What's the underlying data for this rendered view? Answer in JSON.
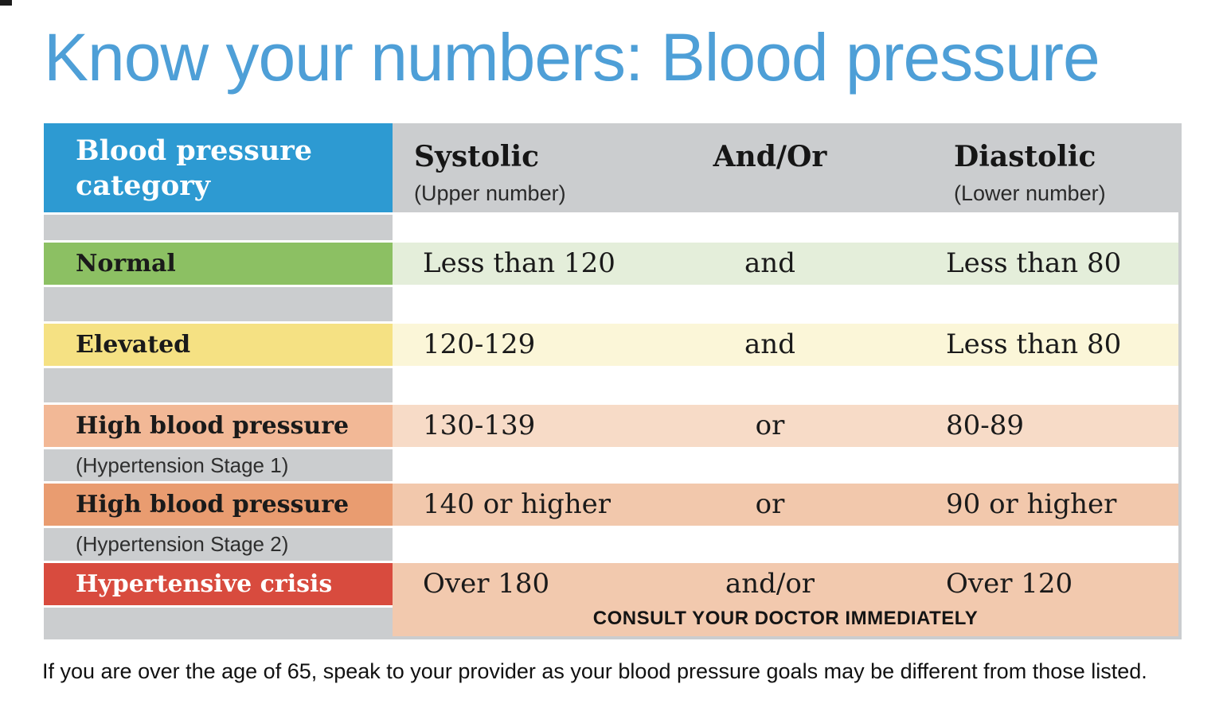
{
  "page": {
    "title": "Know your numbers: Blood pressure",
    "footnote": "If you are over the age of 65, speak to your provider as your blood pressure goals may be different from those listed.",
    "colors": {
      "title_blue": "#4E9FD7",
      "header_blue": "#2D9AD2",
      "table_gray": "#CBCDCF",
      "page_background": "#FFFFFF"
    }
  },
  "table": {
    "header": {
      "category": "Blood pressure category",
      "systolic": {
        "label": "Systolic",
        "sub": "(Upper number)"
      },
      "connector": {
        "label": "And/Or"
      },
      "diastolic": {
        "label": "Diastolic",
        "sub": "(Lower number)"
      }
    },
    "rows": [
      {
        "category": "Normal",
        "systolic": "Less than 120",
        "connector": "and",
        "diastolic": "Less than 80",
        "bar_color": "#8CC063",
        "band_color": "#E4EEDA"
      },
      {
        "category": "Elevated",
        "systolic": "120-129",
        "connector": "and",
        "diastolic": "Less than 80",
        "bar_color": "#F5E183",
        "band_color": "#FBF6D8"
      },
      {
        "category": "High blood pressure",
        "subcategory": "(Hypertension Stage 1)",
        "systolic": "130-139",
        "connector": "or",
        "diastolic": "80-89",
        "bar_color": "#F2B896",
        "band_color": "#F7DBC7"
      },
      {
        "category": "High blood pressure",
        "subcategory": "(Hypertension Stage 2)",
        "systolic": "140 or higher",
        "connector": "or",
        "diastolic": "90 or higher",
        "bar_color": "#E99C70",
        "band_color": "#F2C8AC"
      },
      {
        "category": "Hypertensive crisis",
        "systolic": "Over 180",
        "connector": "and/or",
        "diastolic": "Over 120",
        "note": "CONSULT YOUR DOCTOR IMMEDIATELY",
        "bar_color": "#D84B3E",
        "band_color": "#F2C9AE"
      }
    ]
  }
}
